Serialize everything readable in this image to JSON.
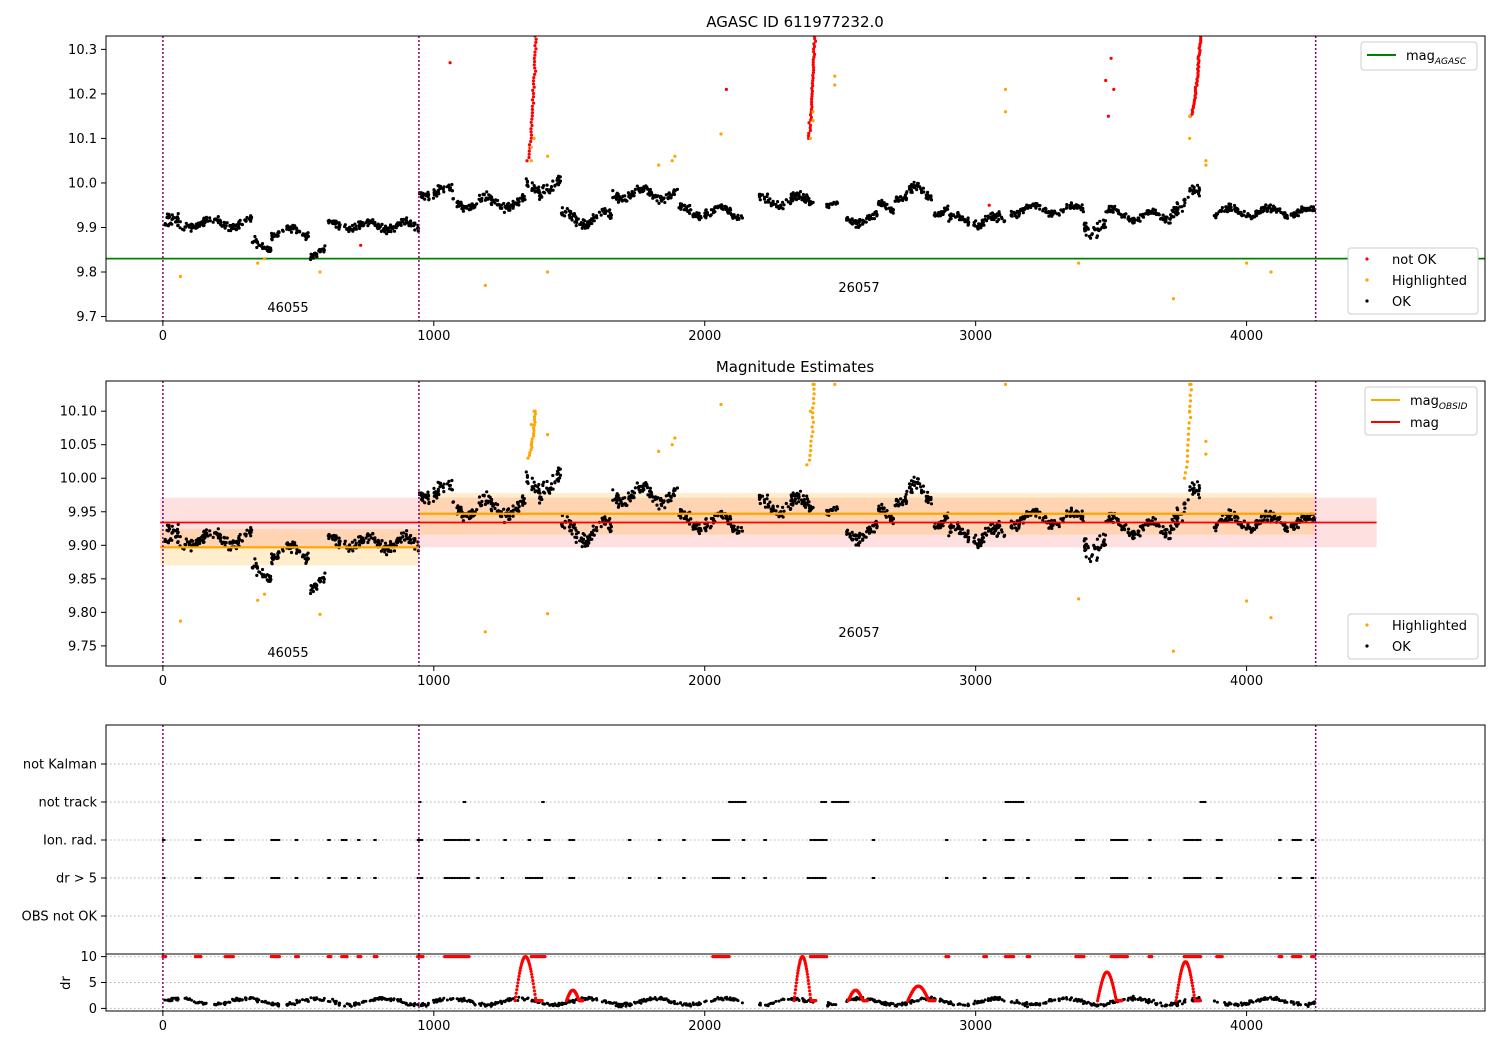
{
  "chart_data": [
    {
      "type": "scatter",
      "title": "AGASC ID 611977232.0",
      "xlim": [
        -210,
        4880
      ],
      "ylim": [
        9.69,
        10.33
      ],
      "x_ticks": [
        0,
        1000,
        2000,
        3000,
        4000
      ],
      "y_ticks": [
        9.7,
        9.8,
        9.9,
        10.0,
        10.1,
        10.2,
        10.3
      ],
      "y_tick_labels": [
        "9.7",
        "9.8",
        "9.9",
        "10.0",
        "10.1",
        "10.2",
        "10.3"
      ],
      "obs_boundaries": [
        0,
        945,
        4255
      ],
      "obs_labels": [
        {
          "text": "46055",
          "x": 470,
          "y": 9.71
        },
        {
          "text": "26057",
          "x": 2600,
          "y": 9.755
        }
      ],
      "lines": [
        {
          "name": "mag",
          "subscript": "AGASC",
          "y": 9.83,
          "color": "#008000"
        }
      ],
      "series": [
        {
          "name": "not OK",
          "color": "#ff0000"
        },
        {
          "name": "Highlighted",
          "color": "#ffa500"
        },
        {
          "name": "OK",
          "color": "#000000"
        }
      ],
      "highlighted_points": [
        [
          65,
          9.79
        ],
        [
          350,
          9.82
        ],
        [
          375,
          9.83
        ],
        [
          580,
          9.8
        ],
        [
          1190,
          9.77
        ],
        [
          1420,
          9.8
        ],
        [
          1360,
          10.05
        ],
        [
          1360,
          10.08
        ],
        [
          1370,
          10.1
        ],
        [
          1420,
          10.06
        ],
        [
          1830,
          10.04
        ],
        [
          1880,
          10.05
        ],
        [
          1890,
          10.06
        ],
        [
          2060,
          10.11
        ],
        [
          2390,
          10.1
        ],
        [
          2400,
          10.14
        ],
        [
          2400,
          10.16
        ],
        [
          2480,
          10.22
        ],
        [
          2480,
          10.24
        ],
        [
          3110,
          10.21
        ],
        [
          3110,
          10.16
        ],
        [
          3380,
          9.82
        ],
        [
          3730,
          9.74
        ],
        [
          3790,
          10.1
        ],
        [
          3790,
          10.15
        ],
        [
          3850,
          10.05
        ],
        [
          3850,
          10.04
        ],
        [
          4000,
          9.82
        ],
        [
          4090,
          9.8
        ]
      ],
      "not_ok_points": [
        [
          1060,
          10.27
        ],
        [
          2080,
          10.21
        ],
        [
          3480,
          10.23
        ],
        [
          3500,
          10.28
        ],
        [
          3490,
          10.15
        ],
        [
          3510,
          10.21
        ],
        [
          730,
          9.86
        ],
        [
          3050,
          9.95
        ]
      ],
      "not_ok_rises": [
        {
          "x0": 1345,
          "x1": 1375,
          "y0": 10.05,
          "y1": 10.33
        },
        {
          "x0": 2380,
          "x1": 2405,
          "y0": 10.1,
          "y1": 10.33
        },
        {
          "x0": 3790,
          "x1": 3830,
          "y0": 10.15,
          "y1": 10.33
        }
      ],
      "legends": [
        {
          "position": "upper-right",
          "entries": [
            "mag"
          ]
        },
        {
          "position": "lower-right",
          "entries": [
            "not OK",
            "Highlighted",
            "OK"
          ]
        }
      ]
    },
    {
      "type": "scatter",
      "title": "Magnitude Estimates",
      "xlim": [
        -210,
        4880
      ],
      "ylim": [
        9.72,
        10.145
      ],
      "x_ticks": [
        0,
        1000,
        2000,
        3000,
        4000
      ],
      "y_ticks": [
        9.75,
        9.8,
        9.85,
        9.9,
        9.95,
        10.0,
        10.05,
        10.1
      ],
      "y_tick_labels": [
        "9.75",
        "9.80",
        "9.85",
        "9.90",
        "9.95",
        "10.00",
        "10.05",
        "10.10"
      ],
      "obs_boundaries": [
        0,
        945,
        4255
      ],
      "obs_labels": [
        {
          "text": "46055",
          "x": 470,
          "y": 9.735
        },
        {
          "text": "26057",
          "x": 2600,
          "y": 9.765
        }
      ],
      "mag": {
        "name": "mag",
        "y": 9.934,
        "band": [
          9.897,
          9.971
        ],
        "x_range": [
          -10,
          4480
        ],
        "color": "#ff0000"
      },
      "mag_obsid": [
        {
          "name": "mag",
          "subscript": "OBSID",
          "x_range": [
            -10,
            945
          ],
          "y": 9.897,
          "band": [
            9.87,
            9.924
          ],
          "color": "#ffa500"
        },
        {
          "name": "mag",
          "subscript": "OBSID",
          "x_range": [
            945,
            4255
          ],
          "y": 9.947,
          "band": [
            9.916,
            9.978
          ],
          "color": "#ffa500"
        }
      ],
      "series": [
        {
          "name": "Highlighted",
          "color": "#ffa500"
        },
        {
          "name": "OK",
          "color": "#000000"
        }
      ],
      "highlighted_points": [
        [
          65,
          9.787
        ],
        [
          350,
          9.818
        ],
        [
          375,
          9.827
        ],
        [
          580,
          9.797
        ],
        [
          1190,
          9.771
        ],
        [
          1420,
          9.798
        ],
        [
          1360,
          10.05
        ],
        [
          1360,
          10.08
        ],
        [
          1370,
          10.1
        ],
        [
          1420,
          10.065
        ],
        [
          1830,
          10.04
        ],
        [
          1880,
          10.05
        ],
        [
          1890,
          10.06
        ],
        [
          2060,
          10.11
        ],
        [
          2390,
          10.1
        ],
        [
          2400,
          10.14
        ],
        [
          2480,
          10.14
        ],
        [
          3110,
          10.14
        ],
        [
          3380,
          9.82
        ],
        [
          3730,
          9.742
        ],
        [
          3790,
          10.1
        ],
        [
          3790,
          10.14
        ],
        [
          3850,
          10.055
        ],
        [
          3850,
          10.036
        ],
        [
          4000,
          9.817
        ],
        [
          4090,
          9.792
        ]
      ],
      "highlighted_rises": [
        {
          "x0": 1345,
          "x1": 1375,
          "y0": 10.03,
          "y1": 10.1
        },
        {
          "x0": 2380,
          "x1": 2405,
          "y0": 10.02,
          "y1": 10.14
        },
        {
          "x0": 3770,
          "x1": 3795,
          "y0": 10.0,
          "y1": 10.14
        }
      ],
      "legends": [
        {
          "position": "upper-right",
          "entries": [
            "mag OBSID",
            "mag"
          ]
        },
        {
          "position": "lower-right",
          "entries": [
            "Highlighted",
            "OK"
          ]
        }
      ]
    },
    {
      "type": "scatter",
      "title": "",
      "xlim": [
        -210,
        4880
      ],
      "categories": [
        "not Kalman",
        "not track",
        "Ion. rad.",
        "dr > 5",
        "OBS not OK"
      ],
      "obs_boundaries": [
        0,
        945,
        4255
      ],
      "flag_rows": {
        "not track": [
          [
            945,
            955
          ],
          [
            1110,
            1120
          ],
          [
            1400,
            1410
          ],
          [
            2090,
            2150
          ],
          [
            2430,
            2450
          ],
          [
            2470,
            2530
          ],
          [
            3110,
            3180
          ],
          [
            3830,
            3850
          ]
        ],
        "Ion. rad.": [
          [
            0,
            10
          ],
          [
            120,
            140
          ],
          [
            230,
            260
          ],
          [
            400,
            430
          ],
          [
            490,
            500
          ],
          [
            610,
            620
          ],
          [
            660,
            680
          ],
          [
            720,
            730
          ],
          [
            780,
            790
          ],
          [
            940,
            960
          ],
          [
            1040,
            1130
          ],
          [
            1160,
            1170
          ],
          [
            1260,
            1270
          ],
          [
            1350,
            1360
          ],
          [
            1410,
            1430
          ],
          [
            1500,
            1520
          ],
          [
            1720,
            1730
          ],
          [
            1830,
            1840
          ],
          [
            1920,
            1930
          ],
          [
            2030,
            2090
          ],
          [
            2140,
            2150
          ],
          [
            2220,
            2230
          ],
          [
            2390,
            2450
          ],
          [
            2620,
            2630
          ],
          [
            2890,
            2900
          ],
          [
            3030,
            3040
          ],
          [
            3110,
            3140
          ],
          [
            3190,
            3200
          ],
          [
            3370,
            3400
          ],
          [
            3500,
            3560
          ],
          [
            3640,
            3650
          ],
          [
            3770,
            3830
          ],
          [
            3890,
            3910
          ],
          [
            4120,
            4130
          ],
          [
            4170,
            4200
          ],
          [
            4240,
            4250
          ]
        ],
        "dr > 5": [
          [
            0,
            10
          ],
          [
            120,
            140
          ],
          [
            230,
            260
          ],
          [
            400,
            430
          ],
          [
            490,
            500
          ],
          [
            610,
            620
          ],
          [
            660,
            680
          ],
          [
            720,
            730
          ],
          [
            780,
            790
          ],
          [
            940,
            960
          ],
          [
            1040,
            1130
          ],
          [
            1160,
            1170
          ],
          [
            1250,
            1260
          ],
          [
            1340,
            1400
          ],
          [
            1500,
            1520
          ],
          [
            1720,
            1730
          ],
          [
            1830,
            1840
          ],
          [
            1920,
            1930
          ],
          [
            2030,
            2090
          ],
          [
            2140,
            2150
          ],
          [
            2220,
            2230
          ],
          [
            2380,
            2450
          ],
          [
            2620,
            2630
          ],
          [
            2890,
            2900
          ],
          [
            3030,
            3040
          ],
          [
            3110,
            3140
          ],
          [
            3190,
            3200
          ],
          [
            3370,
            3400
          ],
          [
            3500,
            3560
          ],
          [
            3640,
            3650
          ],
          [
            3770,
            3830
          ],
          [
            3890,
            3910
          ],
          [
            4120,
            4130
          ],
          [
            4170,
            4200
          ],
          [
            4240,
            4250
          ]
        ]
      }
    },
    {
      "type": "scatter",
      "title": "",
      "xlim": [
        -210,
        4880
      ],
      "ylim": [
        -0.5,
        10.5
      ],
      "ylabel": "dr",
      "x_ticks": [
        0,
        1000,
        2000,
        3000,
        4000
      ],
      "y_ticks": [
        0,
        5,
        10
      ],
      "y_tick_labels": [
        "0",
        "5",
        "10"
      ],
      "obs_boundaries": [
        0,
        945,
        4255
      ],
      "bumps": [
        {
          "x0": 1300,
          "x1": 1400,
          "peak": 10
        },
        {
          "x0": 2330,
          "x1": 2410,
          "peak": 10
        },
        {
          "x0": 2750,
          "x1": 2850,
          "peak": 4.3
        },
        {
          "x0": 3740,
          "x1": 3830,
          "peak": 9
        },
        {
          "x0": 1490,
          "x1": 1550,
          "peak": 3.5
        },
        {
          "x0": 2530,
          "x1": 2600,
          "peak": 3.5
        },
        {
          "x0": 3450,
          "x1": 3540,
          "peak": 7
        }
      ],
      "saturated_ranges": [
        [
          0,
          10
        ],
        [
          120,
          140
        ],
        [
          230,
          260
        ],
        [
          400,
          430
        ],
        [
          490,
          500
        ],
        [
          610,
          620
        ],
        [
          660,
          680
        ],
        [
          720,
          730
        ],
        [
          780,
          790
        ],
        [
          940,
          960
        ],
        [
          1040,
          1130
        ],
        [
          1360,
          1410
        ],
        [
          2030,
          2090
        ],
        [
          2390,
          2450
        ],
        [
          2890,
          2900
        ],
        [
          3030,
          3040
        ],
        [
          3110,
          3140
        ],
        [
          3190,
          3200
        ],
        [
          3370,
          3400
        ],
        [
          3500,
          3560
        ],
        [
          3640,
          3650
        ],
        [
          3770,
          3830
        ],
        [
          3890,
          3910
        ],
        [
          4120,
          4130
        ],
        [
          4170,
          4200
        ],
        [
          4240,
          4250
        ]
      ]
    }
  ]
}
